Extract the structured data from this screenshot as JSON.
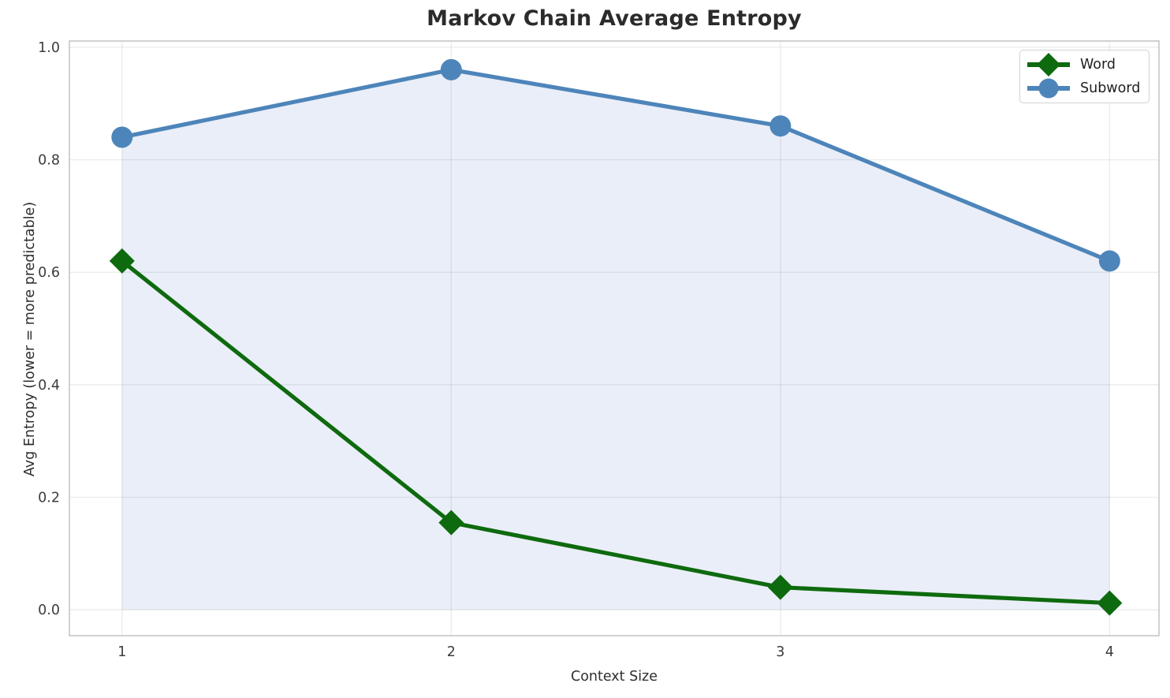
{
  "chart_data": {
    "type": "line",
    "title": "Markov Chain Average Entropy",
    "xlabel": "Context Size",
    "ylabel": "Avg Entropy (lower = more predictable)",
    "x": [
      1,
      2,
      3,
      4
    ],
    "xtick_labels": [
      "1",
      "2",
      "3",
      "4"
    ],
    "yticks": [
      0.0,
      0.2,
      0.4,
      0.6,
      0.8,
      1.0
    ],
    "ytick_labels": [
      "0.0",
      "0.2",
      "0.4",
      "0.6",
      "0.8",
      "1.0"
    ],
    "xlim": [
      0.84,
      4.15
    ],
    "ylim": [
      -0.046,
      1.011
    ],
    "grid": true,
    "legend_position": "upper right",
    "series": [
      {
        "name": "Word",
        "marker": "diamond",
        "line_color": "#0e6a0e",
        "area_fill_color": "#d5e2de",
        "values": [
          0.62,
          0.155,
          0.04,
          0.012
        ]
      },
      {
        "name": "Subword",
        "marker": "circle",
        "line_color": "#4d85ba",
        "area_fill_color": "#eaeef8",
        "values": [
          0.84,
          0.96,
          0.86,
          0.62
        ]
      }
    ],
    "colors": {
      "grid": "rgba(0,0,0,0.075)",
      "spine": "#cccccc",
      "tick_text": "#3c3c3c"
    }
  }
}
